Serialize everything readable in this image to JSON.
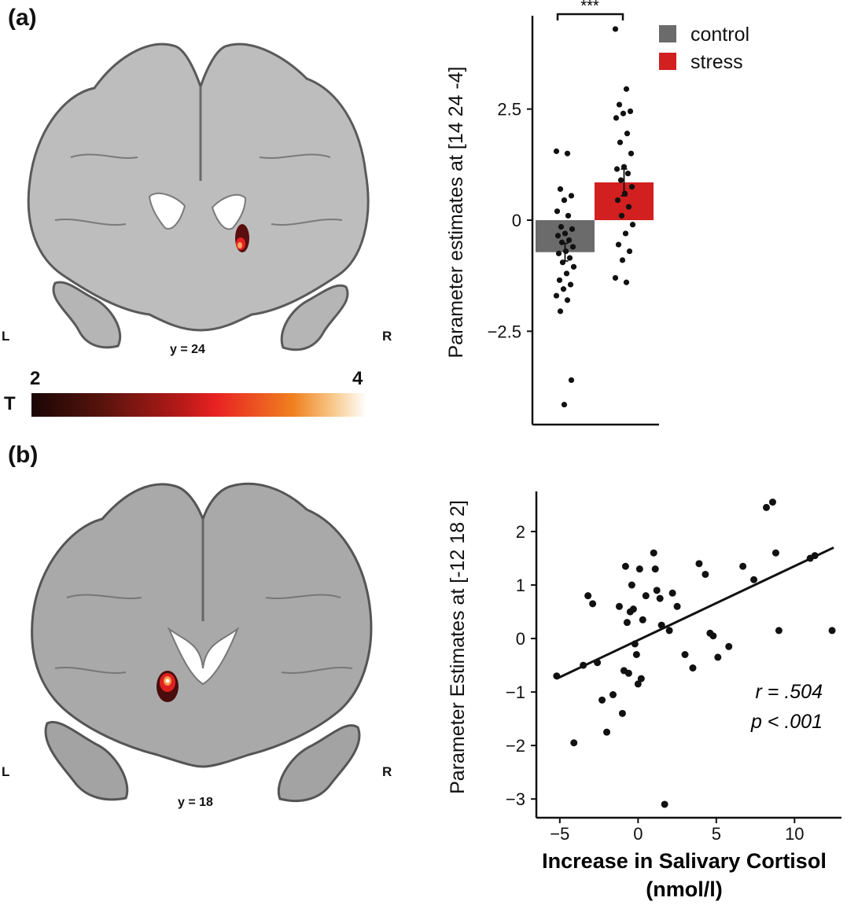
{
  "panels": {
    "a": {
      "label": "(a)",
      "left_marker": "L",
      "right_marker": "R",
      "slice_label": "y = 24",
      "colorbar": {
        "title": "T",
        "min_label": "2",
        "max_label": "4",
        "colors": [
          "#1a0606",
          "#b81a18",
          "#e82222",
          "#f08020",
          "#ffffff"
        ]
      }
    },
    "b": {
      "label": "(b)",
      "left_marker": "L",
      "right_marker": "R",
      "slice_label": "y = 18"
    }
  },
  "chart_data": [
    {
      "type": "bar",
      "categories": [
        "control",
        "stress"
      ],
      "values": [
        -0.72,
        0.85
      ],
      "error": [
        0.2,
        0.3
      ],
      "colors": [
        "#6b6b6b",
        "#d21f1f"
      ],
      "ylabel": "Parameter estimates at [14 24 -4]",
      "ylim": [
        -4.6,
        4.6
      ],
      "yticks": [
        -2.5,
        0,
        2.5
      ],
      "ytick_labels": [
        "−2.5",
        "0",
        "2.5"
      ],
      "significance": "***",
      "legend": {
        "position": "top-right",
        "entries": [
          "control",
          "stress"
        ]
      },
      "points": {
        "control": [
          1.55,
          1.5,
          0.7,
          0.55,
          0.45,
          0.2,
          0.1,
          -0.15,
          -0.2,
          -0.3,
          -0.35,
          -0.45,
          -0.5,
          -0.6,
          -0.7,
          -0.75,
          -0.85,
          -0.95,
          -1.05,
          -1.2,
          -1.35,
          -1.45,
          -1.55,
          -1.7,
          -1.8,
          -2.05,
          -3.6,
          -4.15
        ],
        "stress": [
          4.3,
          2.95,
          2.6,
          2.45,
          2.4,
          2.3,
          1.95,
          1.75,
          1.5,
          1.2,
          1.15,
          1.05,
          0.9,
          0.75,
          0.6,
          0.45,
          0.3,
          0.1,
          -0.1,
          -0.3,
          -0.55,
          -0.7,
          -0.9,
          -1.3,
          -1.4
        ]
      }
    },
    {
      "type": "scatter",
      "xlabel": "Increase in Salivary Cortisol (nmol/l)",
      "xlabel_lines": [
        "Increase in Salivary Cortisol",
        "(nmol/l)"
      ],
      "ylabel": "Parameter Estimates at [-12 18 2]",
      "xlim": [
        -6.5,
        13
      ],
      "ylim": [
        -3.35,
        2.75
      ],
      "xticks": [
        -5,
        0,
        5,
        10
      ],
      "xtick_labels": [
        "−5",
        "0",
        "5",
        "10"
      ],
      "yticks": [
        -3,
        -2,
        -1,
        0,
        1,
        2
      ],
      "ytick_labels": [
        "−3",
        "−2",
        "−1",
        "0",
        "1",
        "2"
      ],
      "fit_line": {
        "x": [
          -5.2,
          12.5
        ],
        "y": [
          -0.75,
          1.7
        ]
      },
      "annotation": {
        "r": "r = .504",
        "p": "p < .001"
      },
      "x": [
        -5.2,
        -4.1,
        -3.5,
        -3.2,
        -2.9,
        -2.6,
        -2.3,
        -2.0,
        -1.6,
        -1.2,
        -1.0,
        -0.9,
        -0.8,
        -0.7,
        -0.6,
        -0.5,
        -0.4,
        -0.3,
        -0.2,
        -0.1,
        0.0,
        0.1,
        0.2,
        0.3,
        0.5,
        1.0,
        1.1,
        1.2,
        1.4,
        1.5,
        1.7,
        2.0,
        2.2,
        2.5,
        3.0,
        3.5,
        3.9,
        4.3,
        4.6,
        4.8,
        5.1,
        5.8,
        6.7,
        7.4,
        8.2,
        8.6,
        8.8,
        9.0,
        11.0,
        11.3,
        12.4
      ],
      "y": [
        -0.7,
        -1.95,
        -0.5,
        0.8,
        0.65,
        -0.45,
        -1.15,
        -1.75,
        -1.05,
        0.6,
        -1.4,
        -0.6,
        1.35,
        0.3,
        -0.65,
        0.5,
        1.0,
        0.55,
        -0.1,
        -0.3,
        -0.85,
        1.3,
        -0.75,
        0.35,
        0.8,
        1.6,
        1.3,
        0.9,
        0.75,
        0.25,
        -3.1,
        0.15,
        0.85,
        0.6,
        -0.3,
        -0.55,
        1.4,
        1.2,
        0.1,
        0.05,
        -0.35,
        -0.15,
        1.35,
        1.1,
        2.45,
        2.55,
        1.6,
        0.15,
        1.5,
        1.55,
        0.15
      ]
    }
  ]
}
